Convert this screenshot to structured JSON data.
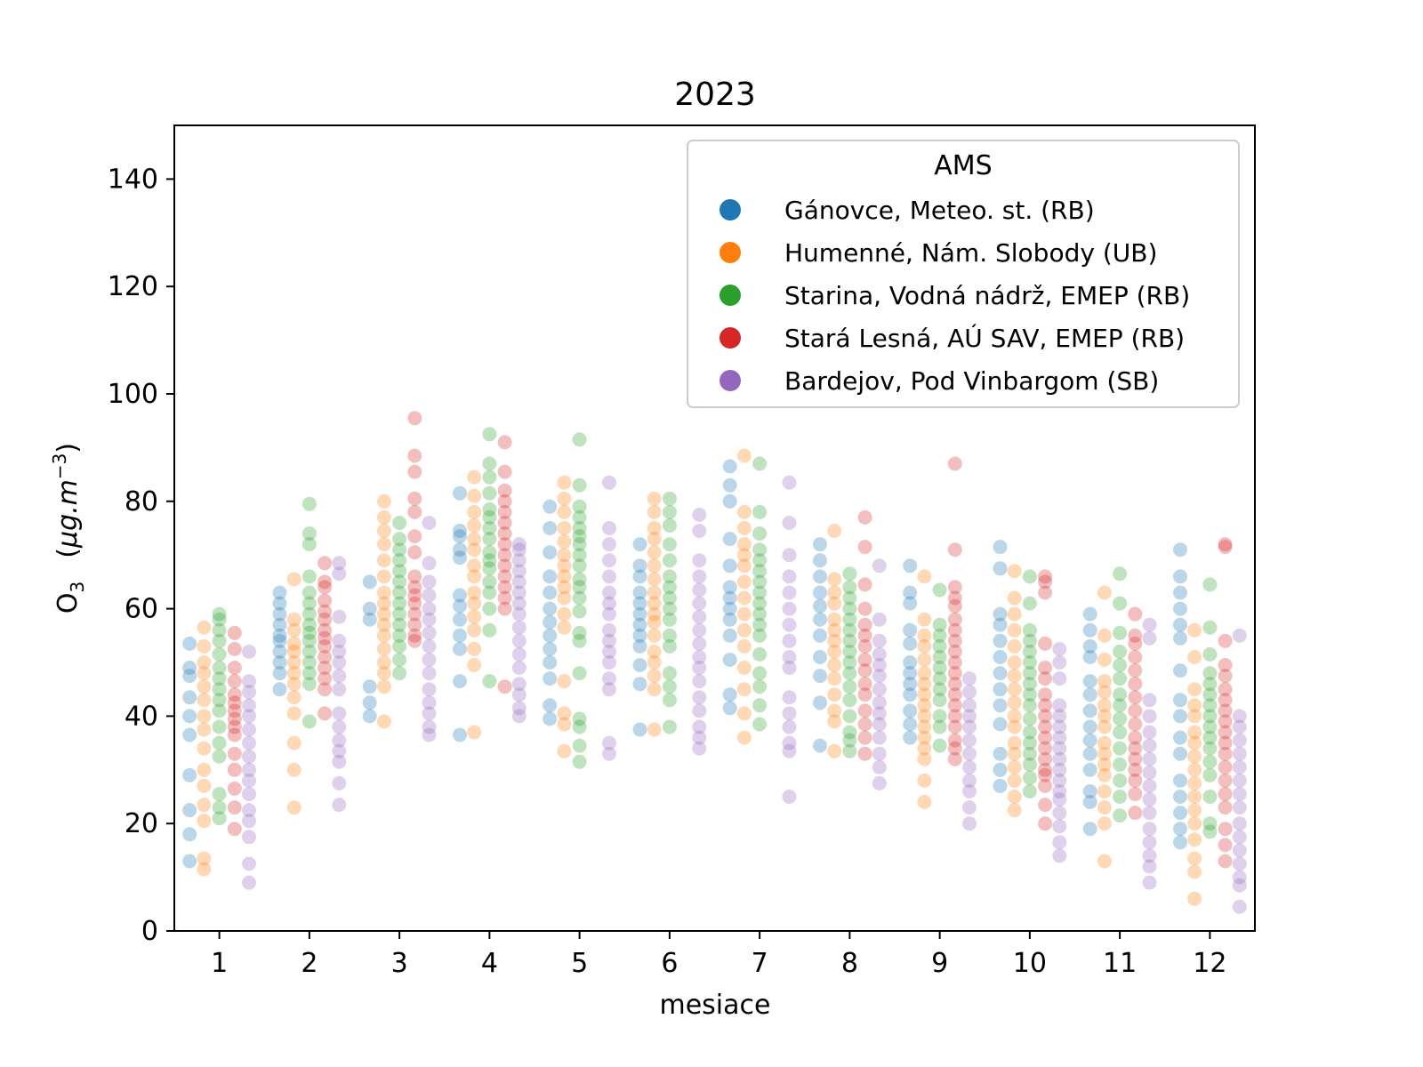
{
  "chart_data": {
    "type": "scatter",
    "title": "2023",
    "xlabel": "mesiace",
    "ylabel": {
      "base": "O",
      "sub": "3",
      "unit_open": "(",
      "unit_mu": "μg",
      "unit_mid": ".m",
      "unit_sup": "−3",
      "unit_close": ")"
    },
    "xlim": [
      0.5,
      12.5
    ],
    "ylim": [
      0,
      150
    ],
    "categories": [
      "1",
      "2",
      "3",
      "4",
      "5",
      "6",
      "7",
      "8",
      "9",
      "10",
      "11",
      "12"
    ],
    "yticks": [
      "0",
      "20",
      "40",
      "60",
      "80",
      "100",
      "120",
      "140"
    ],
    "grid": false,
    "legend": {
      "title": "AMS",
      "placement": "top-right"
    },
    "series": [
      {
        "name": "Gánovce, Meteo. st. (RB)",
        "color": "#1f77b4",
        "offset": -0.33,
        "values": [
          [
            13,
            18,
            22.5,
            29,
            36.5,
            40,
            43.5,
            47.5,
            49,
            53.5
          ],
          [
            45,
            48,
            50,
            52,
            54,
            55,
            57,
            59,
            61,
            63
          ],
          [
            40,
            42.5,
            45.5,
            58,
            60,
            65
          ],
          [
            36.5,
            46.5,
            52.5,
            55,
            58,
            60.5,
            62.5,
            69.5,
            71,
            73.5,
            74.5,
            81.5
          ],
          [
            39.5,
            42,
            47,
            50,
            52.5,
            55,
            57.5,
            60,
            63,
            66,
            70.5,
            75,
            79
          ],
          [
            37.5,
            46,
            49.5,
            53,
            55,
            57,
            59,
            61,
            63,
            66,
            68,
            72
          ],
          [
            41.5,
            44,
            50.5,
            55,
            58,
            60,
            62,
            64,
            68,
            73,
            80,
            83,
            86.5
          ],
          [
            34.5,
            42.5,
            47.5,
            51,
            55,
            58,
            60.5,
            63,
            66,
            69,
            72
          ],
          [
            36,
            38.5,
            41,
            44,
            46,
            48,
            50,
            53.5,
            56,
            61,
            63,
            68
          ],
          [
            27,
            30,
            33,
            38.5,
            42,
            45,
            48,
            51,
            54,
            57,
            59,
            67.5,
            71.5
          ],
          [
            19,
            24,
            26,
            30,
            33,
            35.5,
            38,
            41,
            44,
            46.5,
            51,
            53,
            56,
            59
          ],
          [
            16.5,
            19,
            22,
            25,
            28,
            33,
            36,
            40,
            43,
            48.5,
            54.5,
            57,
            60,
            63,
            66,
            71
          ]
        ]
      },
      {
        "name": "Humenné, Nám. Slobody (UB)",
        "color": "#ff7f0e",
        "offset": -0.17,
        "values": [
          [
            11.5,
            13.5,
            20.5,
            23.5,
            27,
            30,
            34,
            37.5,
            40,
            43,
            45.5,
            48,
            50,
            53,
            56.5
          ],
          [
            23,
            30,
            35,
            40.5,
            43.5,
            46,
            48,
            50,
            52,
            53.5,
            56,
            58,
            65.5
          ],
          [
            39,
            45.5,
            48,
            50,
            52.5,
            55,
            57,
            59,
            61,
            63,
            66,
            69,
            72,
            74.5,
            77,
            80
          ],
          [
            37,
            49.5,
            52.5,
            56,
            58.5,
            61,
            63,
            66,
            68,
            71,
            73,
            75.5,
            78,
            81,
            84.5
          ],
          [
            33.5,
            38.5,
            40.5,
            46.5,
            56.5,
            59,
            62,
            64,
            66,
            68,
            70,
            72.5,
            75,
            78,
            80.5,
            83.5
          ],
          [
            37.5,
            45,
            47.5,
            50,
            52,
            55,
            57.5,
            59,
            61,
            63,
            65.5,
            68,
            70.5,
            73,
            75,
            78,
            80.5
          ],
          [
            36,
            40.5,
            45,
            49,
            53,
            56,
            59,
            62,
            65,
            68,
            70,
            72,
            75,
            78,
            88.5
          ],
          [
            33.5,
            39,
            41,
            44,
            47,
            49.5,
            52,
            54,
            56,
            58,
            61,
            63,
            65.5,
            74.5
          ],
          [
            24,
            28,
            32,
            34,
            36,
            38,
            40,
            42,
            44,
            46,
            48,
            50.5,
            53,
            55,
            58,
            66
          ],
          [
            22.5,
            25,
            28,
            30.5,
            33,
            35,
            38,
            40,
            42.5,
            45,
            47.5,
            50,
            53,
            56,
            59,
            62,
            67
          ],
          [
            13,
            20,
            23,
            26,
            29,
            31,
            33,
            35,
            38,
            40,
            42,
            44.5,
            46.5,
            50.5,
            55,
            63
          ],
          [
            6,
            11,
            13.5,
            17,
            20,
            22.5,
            25,
            27.5,
            30,
            32.5,
            35,
            37,
            40,
            42,
            45,
            51,
            56
          ]
        ]
      },
      {
        "name": "Starina, Vodná nádrž, EMEP (RB)",
        "color": "#2ca02c",
        "offset": 0,
        "values": [
          [
            21,
            23,
            25.5,
            32.5,
            35,
            38,
            41,
            43,
            45,
            47,
            49,
            51.5,
            54,
            56,
            58,
            59
          ],
          [
            39,
            46,
            48,
            50,
            52,
            54,
            55.5,
            57,
            59,
            61,
            63,
            66,
            72,
            74,
            79.5
          ],
          [
            48,
            50.5,
            53,
            55,
            57,
            59,
            61,
            63,
            65,
            67,
            69,
            71,
            73,
            76
          ],
          [
            46.5,
            56,
            60,
            63,
            65,
            67.5,
            69,
            70.5,
            73,
            75,
            77,
            78.5,
            81.5,
            84.5,
            87,
            92.5
          ],
          [
            31.5,
            34.5,
            38,
            39.5,
            48,
            54,
            55.5,
            59.5,
            62,
            64,
            65.5,
            68,
            70,
            72,
            73.5,
            75,
            77,
            79,
            83,
            91.5
          ],
          [
            38,
            43,
            45.5,
            48,
            53,
            55,
            58,
            60,
            62,
            64,
            66,
            69,
            72,
            75.5,
            78,
            80.5
          ],
          [
            38.5,
            42,
            45.5,
            48,
            51.5,
            55,
            57,
            59,
            61,
            63,
            65,
            67,
            69,
            71,
            74,
            78,
            87
          ],
          [
            33.5,
            35.5,
            37,
            40,
            43,
            45.5,
            48,
            50,
            52,
            54,
            56,
            58,
            60,
            62,
            64,
            66.5
          ],
          [
            34.5,
            38,
            40,
            43,
            45,
            47,
            49,
            51,
            53,
            55,
            57,
            63.5
          ],
          [
            26,
            28.5,
            31,
            33,
            35,
            37,
            39.5,
            42,
            44,
            46,
            48,
            50,
            52,
            54,
            56,
            61,
            66
          ],
          [
            21.5,
            25,
            28,
            31,
            34,
            37,
            39.5,
            42,
            44,
            47,
            49.5,
            52,
            55.5,
            61,
            66.5
          ],
          [
            18.5,
            20,
            25,
            29,
            31.5,
            34,
            36,
            38,
            40,
            42,
            44,
            46,
            48,
            51.5,
            56.5,
            64.5
          ]
        ]
      },
      {
        "name": "Stará Lesná, AÚ SAV, EMEP (RB)",
        "color": "#d62728",
        "offset": 0.17,
        "values": [
          [
            19,
            23,
            26.5,
            30,
            33,
            36.5,
            38,
            39.5,
            41,
            42.5,
            44,
            46.5,
            49,
            52.5,
            55.5
          ],
          [
            40.5,
            45,
            47,
            49,
            51,
            53,
            54.5,
            56,
            58,
            59.5,
            61.5,
            64,
            65,
            68.5
          ],
          [
            54,
            55,
            57,
            59,
            61,
            62.5,
            64,
            66,
            70.5,
            73.5,
            78,
            80.5,
            85.5,
            88.5,
            95.5
          ],
          [
            45.5,
            60,
            62,
            64,
            66,
            68,
            70,
            72,
            74,
            76,
            78,
            80,
            82,
            85.5,
            91
          ],
          [],
          [],
          [],
          [
            33,
            36,
            38.5,
            41,
            44,
            46,
            48.5,
            50.5,
            53,
            55,
            57,
            60,
            64.5,
            71.5,
            77
          ],
          [
            32,
            34,
            35.5,
            38,
            40,
            42,
            44,
            46,
            48,
            50,
            52,
            54,
            56,
            58,
            60.5,
            62,
            64,
            71,
            87
          ],
          [
            20,
            23.5,
            27,
            29,
            30,
            32,
            34,
            36,
            38,
            40,
            42,
            44,
            47,
            49,
            53.5,
            63,
            65,
            66
          ],
          [
            22,
            25.5,
            28,
            30,
            32,
            34,
            36,
            38.5,
            41,
            43.5,
            46,
            48.5,
            51,
            53.5,
            55,
            59
          ],
          [
            13,
            16,
            19,
            23,
            25.5,
            28,
            30.5,
            33,
            35,
            37,
            39,
            41,
            43,
            45,
            47.5,
            49.5,
            54,
            71.5,
            72
          ]
        ]
      },
      {
        "name": "Bardejov, Pod Vinbargom (SB)",
        "color": "#9467bd",
        "offset": 0.33,
        "values": [
          [
            9,
            12.5,
            17.5,
            20.5,
            22.5,
            25.5,
            28,
            30,
            32.5,
            35,
            37.5,
            40,
            42,
            44.5,
            46.5,
            52
          ],
          [
            23.5,
            27.5,
            31.5,
            33.5,
            35.5,
            38,
            40.5,
            45,
            47.5,
            50,
            52,
            54,
            58.5,
            66.5,
            68.5
          ],
          [
            36.5,
            38,
            40.5,
            42.5,
            45,
            48,
            50.5,
            53,
            55.5,
            58,
            60,
            62.5,
            65,
            68.5,
            76
          ],
          [
            40,
            41.5,
            44,
            46,
            49,
            51.5,
            54,
            56.5,
            59,
            61,
            63,
            65,
            67,
            69,
            71,
            72
          ],
          [
            33,
            35,
            45,
            47,
            50,
            52,
            54,
            56,
            59,
            61,
            63,
            66,
            69,
            72,
            75,
            83.5
          ],
          [
            34,
            36,
            38,
            41,
            43.5,
            46.5,
            49,
            51,
            53.5,
            56,
            58.5,
            61,
            63.5,
            66,
            69,
            74.5,
            77.5
          ],
          [
            25,
            33.5,
            35,
            38,
            40.5,
            43.5,
            49,
            51,
            54,
            57,
            60,
            63,
            66,
            70,
            76,
            83.5
          ],
          [
            27.5,
            30.5,
            33,
            36,
            38.5,
            40.5,
            42.5,
            45,
            47.5,
            49.5,
            51.5,
            54,
            58,
            68
          ],
          [
            20,
            23,
            26,
            28,
            30.5,
            33,
            35.5,
            38,
            40,
            42,
            44.5,
            47
          ],
          [
            14,
            16.5,
            19.5,
            22,
            24.5,
            26,
            28,
            30,
            32,
            34,
            36,
            38,
            40,
            42,
            47,
            50,
            52.5
          ],
          [
            9,
            12,
            14,
            16.5,
            19,
            22,
            24.5,
            27,
            29.5,
            32,
            34.5,
            37,
            40,
            43,
            54.5,
            57
          ],
          [
            4.5,
            8.5,
            10,
            12.5,
            15,
            17.5,
            20,
            23,
            25.5,
            28,
            30.5,
            33,
            35.5,
            38,
            40,
            55
          ]
        ]
      }
    ]
  }
}
